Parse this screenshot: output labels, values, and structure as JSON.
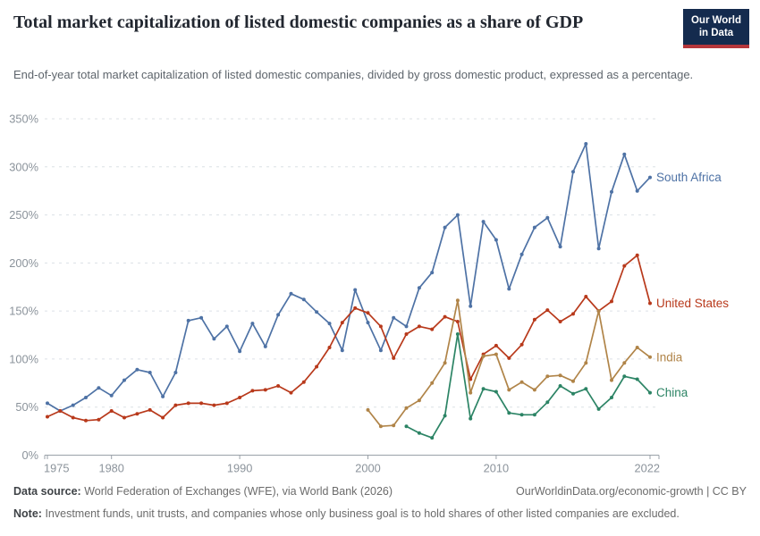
{
  "header": {
    "title": "Total market capitalization of listed domestic companies as a share of GDP",
    "subtitle": "End-of-year total market capitalization of listed domestic companies, divided by gross domestic product, expressed as a percentage.",
    "logo": {
      "line1": "Our World",
      "line2": "in Data",
      "bg_color": "#142B4E",
      "bar_color": "#B5363B"
    }
  },
  "chart_data": {
    "type": "line",
    "title": "Total market capitalization of listed domestic companies as a share of GDP",
    "xlabel": "",
    "ylabel": "",
    "unit": "%",
    "xlim": [
      1975,
      2022
    ],
    "ylim": [
      0,
      350
    ],
    "x_ticks": [
      1975,
      1980,
      1990,
      2000,
      2010,
      2022
    ],
    "y_ticks": [
      0,
      50,
      100,
      150,
      200,
      250,
      300,
      350
    ],
    "grid": "horizontal-dashed",
    "legend_position": "end-of-line-labels",
    "grid_color": "#DCE1E6",
    "axis_color": "#9AA1A8",
    "tick_color": "#8B939B",
    "series": [
      {
        "name": "South Africa",
        "color": "#4E72A5",
        "start_year": 1975,
        "values": [
          54,
          46,
          52,
          60,
          70,
          62,
          78,
          89,
          86,
          61,
          86,
          140,
          143,
          121,
          134,
          108,
          137,
          113,
          146,
          168,
          162,
          149,
          137,
          109,
          172,
          138,
          109,
          143,
          134,
          174,
          190,
          237,
          250,
          155,
          243,
          224,
          173,
          209,
          237,
          247,
          217,
          295,
          324,
          215,
          274,
          313,
          275,
          289
        ]
      },
      {
        "name": "United States",
        "color": "#B8391B",
        "start_year": 1975,
        "values": [
          40,
          46,
          39,
          36,
          37,
          46,
          39,
          43,
          47,
          39,
          52,
          54,
          54,
          52,
          54,
          60,
          67,
          68,
          72,
          65,
          76,
          92,
          112,
          138,
          153,
          148,
          134,
          101,
          126,
          134,
          131,
          144,
          139,
          79,
          105,
          114,
          101,
          115,
          141,
          151,
          139,
          147,
          165,
          150,
          160,
          197,
          208,
          158
        ]
      },
      {
        "name": "India",
        "color": "#B08448",
        "start_year": 2000,
        "values": [
          47,
          30,
          31,
          49,
          57,
          75,
          96,
          161,
          65,
          103,
          105,
          68,
          76,
          68,
          82,
          83,
          77,
          96,
          150,
          78,
          96,
          112,
          102
        ]
      },
      {
        "name": "China",
        "color": "#2C8465",
        "start_year": 2003,
        "values": [
          30,
          23,
          18,
          41,
          126,
          38,
          69,
          66,
          44,
          42,
          42,
          55,
          72,
          64,
          69,
          48,
          60,
          82,
          79,
          65
        ]
      }
    ]
  },
  "footer": {
    "datasource_label": "Data source:",
    "datasource": "World Federation of Exchanges (WFE), via World Bank (2026)",
    "link": "OurWorldinData.org/economic-growth | CC BY",
    "note_label": "Note:",
    "note": "Investment funds, unit trusts, and companies whose only business goal is to hold shares of other listed companies are excluded."
  }
}
